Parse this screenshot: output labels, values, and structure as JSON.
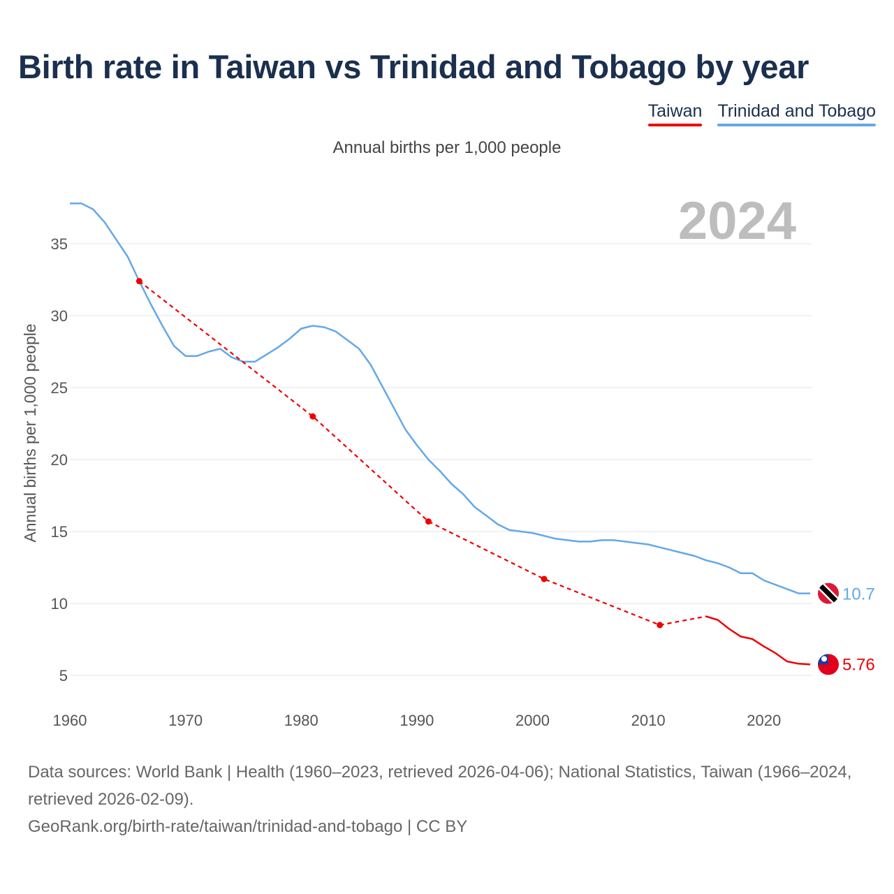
{
  "title": "Birth rate in Taiwan vs Trinidad and Tobago by year",
  "subtitle": "Annual births per 1,000 people",
  "legend": [
    {
      "name": "Taiwan",
      "color": "#ee0000"
    },
    {
      "name": "Trinidad and Tobago",
      "color": "#64a8e8"
    }
  ],
  "footer": {
    "sources": "Data sources: World Bank | Health (1960–2023, retrieved 2026-04-06); National Statistics, Taiwan (1966–2024, retrieved 2026-02-09).",
    "link": "GeoRank.org/birth-rate/taiwan/trinidad-and-tobago | CC BY"
  },
  "chart_data": {
    "type": "line",
    "title": "Birth rate in Taiwan vs Trinidad and Tobago by year",
    "subtitle": "Annual births per 1,000 people",
    "xlabel": "",
    "ylabel": "Annual births per 1,000 people",
    "xlim": [
      1960,
      2024
    ],
    "ylim": [
      3,
      38
    ],
    "x_ticks": [
      1960,
      1970,
      1980,
      1990,
      2000,
      2010,
      2020
    ],
    "y_ticks": [
      5,
      10,
      15,
      20,
      25,
      30,
      35
    ],
    "grid": "horizontal",
    "legend_position": "top-right",
    "year_label": "2024",
    "series": [
      {
        "name": "Trinidad and Tobago",
        "color": "#64a8e8",
        "style": "solid",
        "end_label": "10.7",
        "flag": "trinidad-and-tobago-flag",
        "points": [
          [
            1960,
            37.8
          ],
          [
            1961,
            37.8
          ],
          [
            1962,
            37.4
          ],
          [
            1963,
            36.5
          ],
          [
            1964,
            35.3
          ],
          [
            1965,
            34.1
          ],
          [
            1966,
            32.4
          ],
          [
            1967,
            30.8
          ],
          [
            1968,
            29.3
          ],
          [
            1969,
            27.9
          ],
          [
            1970,
            27.2
          ],
          [
            1971,
            27.2
          ],
          [
            1972,
            27.5
          ],
          [
            1973,
            27.7
          ],
          [
            1974,
            27.1
          ],
          [
            1975,
            26.8
          ],
          [
            1976,
            26.8
          ],
          [
            1977,
            27.3
          ],
          [
            1978,
            27.8
          ],
          [
            1979,
            28.4
          ],
          [
            1980,
            29.1
          ],
          [
            1981,
            29.3
          ],
          [
            1982,
            29.2
          ],
          [
            1983,
            28.9
          ],
          [
            1984,
            28.3
          ],
          [
            1985,
            27.7
          ],
          [
            1986,
            26.6
          ],
          [
            1987,
            25.1
          ],
          [
            1988,
            23.6
          ],
          [
            1989,
            22.1
          ],
          [
            1990,
            21.0
          ],
          [
            1991,
            20.0
          ],
          [
            1992,
            19.2
          ],
          [
            1993,
            18.3
          ],
          [
            1994,
            17.6
          ],
          [
            1995,
            16.7
          ],
          [
            1996,
            16.1
          ],
          [
            1997,
            15.5
          ],
          [
            1998,
            15.1
          ],
          [
            1999,
            15.0
          ],
          [
            2000,
            14.9
          ],
          [
            2001,
            14.7
          ],
          [
            2002,
            14.5
          ],
          [
            2003,
            14.4
          ],
          [
            2004,
            14.3
          ],
          [
            2005,
            14.3
          ],
          [
            2006,
            14.4
          ],
          [
            2007,
            14.4
          ],
          [
            2008,
            14.3
          ],
          [
            2009,
            14.2
          ],
          [
            2010,
            14.1
          ],
          [
            2011,
            13.9
          ],
          [
            2012,
            13.7
          ],
          [
            2013,
            13.5
          ],
          [
            2014,
            13.3
          ],
          [
            2015,
            13.0
          ],
          [
            2016,
            12.8
          ],
          [
            2017,
            12.5
          ],
          [
            2018,
            12.1
          ],
          [
            2019,
            12.1
          ],
          [
            2020,
            11.6
          ],
          [
            2021,
            11.3
          ],
          [
            2022,
            11.0
          ],
          [
            2023,
            10.7
          ],
          [
            2024,
            10.7
          ]
        ]
      },
      {
        "name": "Taiwan",
        "color": "#ee0000",
        "style": "mixed",
        "end_label": "5.76",
        "flag": "taiwan-flag",
        "dashed_points": [
          [
            1966,
            32.4
          ],
          [
            1981,
            23.0
          ],
          [
            1991,
            15.7
          ],
          [
            2001,
            11.7
          ],
          [
            2011,
            8.5
          ],
          [
            2015,
            9.1
          ]
        ],
        "markers": [
          [
            1966,
            32.4
          ],
          [
            1981,
            23.0
          ],
          [
            1991,
            15.7
          ],
          [
            2001,
            11.7
          ],
          [
            2011,
            8.5
          ]
        ],
        "solid_points": [
          [
            2015,
            9.1
          ],
          [
            2016,
            8.86
          ],
          [
            2017,
            8.23
          ],
          [
            2018,
            7.7
          ],
          [
            2019,
            7.53
          ],
          [
            2020,
            7.01
          ],
          [
            2021,
            6.55
          ],
          [
            2022,
            5.97
          ],
          [
            2023,
            5.81
          ],
          [
            2024,
            5.76
          ]
        ]
      }
    ]
  }
}
